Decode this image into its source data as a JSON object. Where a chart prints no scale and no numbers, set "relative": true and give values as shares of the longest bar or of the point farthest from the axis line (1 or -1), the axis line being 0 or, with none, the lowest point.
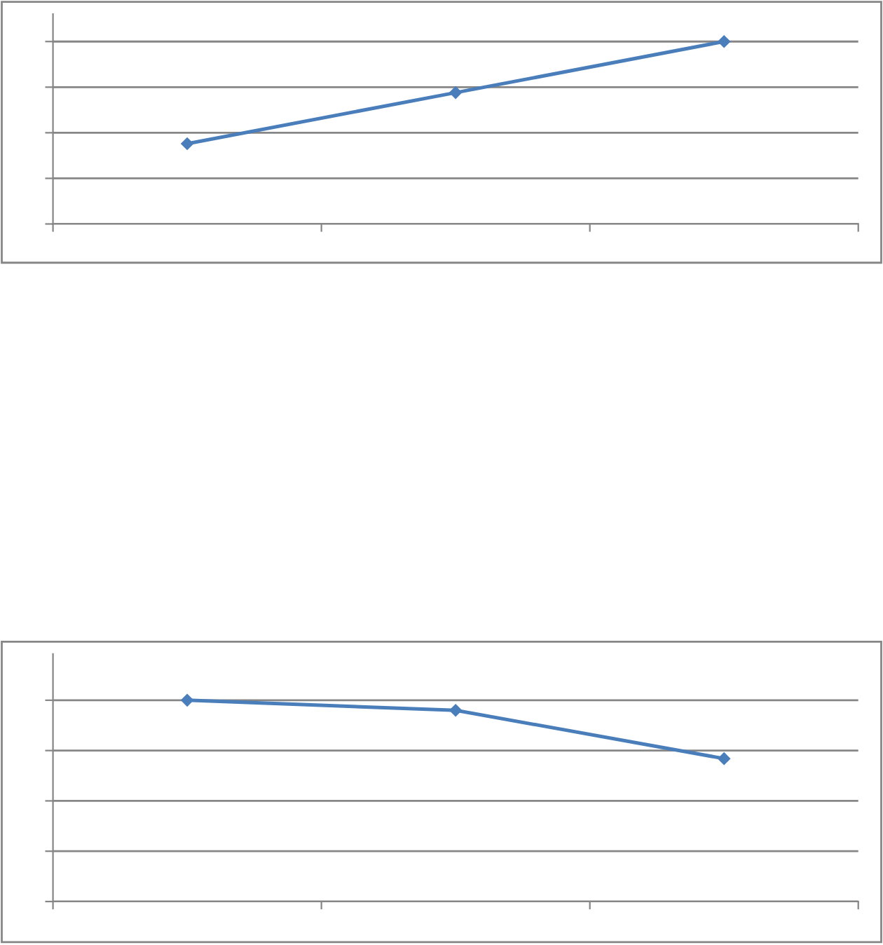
{
  "chart_data": [
    {
      "type": "line",
      "categories": [
        null,
        null,
        null
      ],
      "relative": true,
      "grid": "y",
      "marker": "diamond",
      "line_style": "solid",
      "tick_labels": false,
      "series": [
        {
          "color": "#4a7ebb",
          "values": [
            0.44,
            0.72,
            1
          ]
        }
      ]
    },
    {
      "type": "line",
      "categories": [
        null,
        null,
        null
      ],
      "relative": true,
      "grid": "y",
      "marker": "diamond",
      "line_style": "solid",
      "tick_labels": false,
      "series": [
        {
          "color": "#4a7ebb",
          "values": [
            1,
            0.95,
            0.71
          ]
        }
      ]
    }
  ]
}
